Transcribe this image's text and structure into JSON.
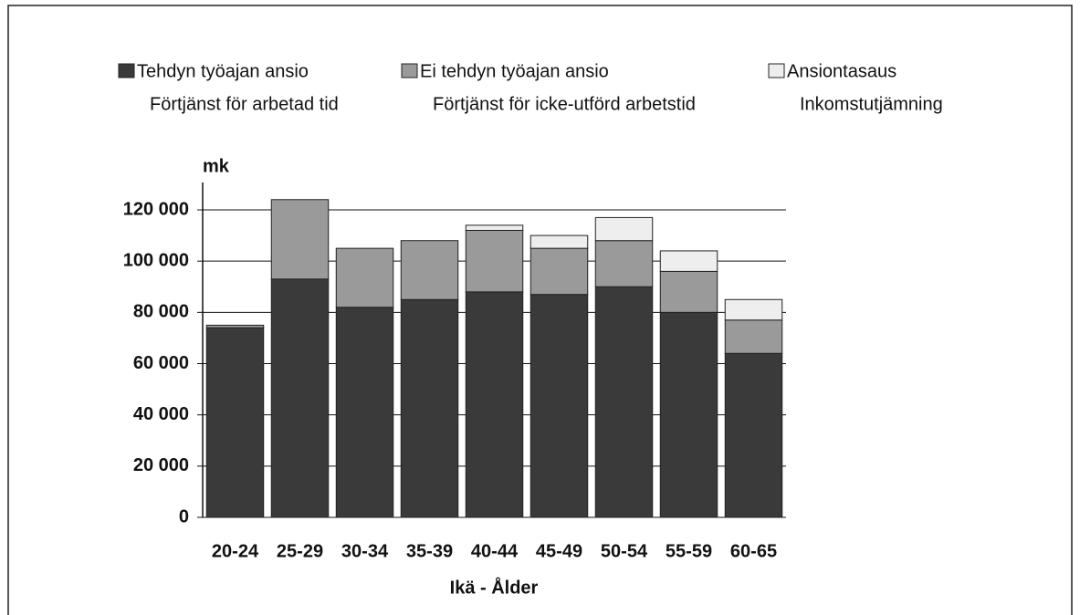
{
  "chart_data": {
    "type": "stacked-bar",
    "y_label": "mk",
    "x_label": "Ikä - Ålder",
    "categories": [
      "20-24",
      "25-29",
      "30-34",
      "35-39",
      "40-44",
      "45-49",
      "50-54",
      "55-59",
      "60-65"
    ],
    "series": [
      {
        "name": "Tehdyn työajan ansio",
        "name_sv": "Förtjänst för arbetad tid",
        "color": "#3a3a3a",
        "values": [
          74000,
          93000,
          82000,
          85000,
          88000,
          87000,
          90000,
          80000,
          64000
        ]
      },
      {
        "name": "Ei tehdyn työajan ansio",
        "name_sv": "Förtjänst för icke-utförd arbetstid",
        "color": "#9a9a9a",
        "values": [
          1000,
          31000,
          23000,
          23000,
          24000,
          18000,
          18000,
          16000,
          13000
        ]
      },
      {
        "name": "Ansiontasaus",
        "name_sv": "Inkomstutjämning",
        "color": "#eeeeee",
        "values": [
          0,
          0,
          0,
          0,
          2000,
          5000,
          9000,
          8000,
          8000
        ]
      }
    ],
    "ylim": [
      0,
      120000
    ],
    "yticks": [
      0,
      {
        "value": 20000,
        "label": "20 000"
      },
      {
        "value": 40000,
        "label": "40 000"
      },
      {
        "value": 60000,
        "label": "60 000"
      },
      {
        "value": 80000,
        "label": "80 000"
      },
      {
        "value": 100000,
        "label": "100 000"
      },
      {
        "value": 120000,
        "label": "120 000"
      }
    ],
    "grid": true
  }
}
